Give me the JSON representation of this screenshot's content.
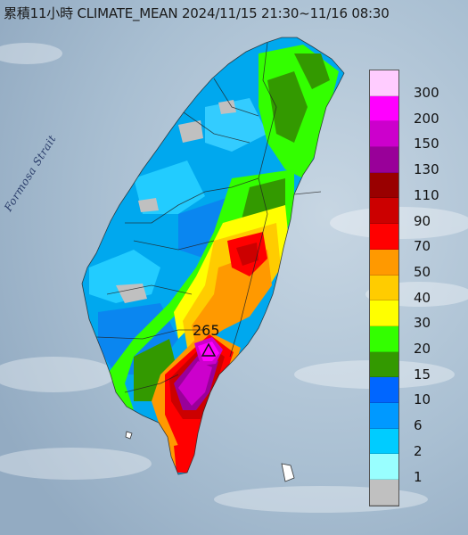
{
  "header": {
    "title": "累積11小時 CLIMATE_MEAN 2024/11/15 21:30~11/16 08:30"
  },
  "map": {
    "strait_label": "Formosa Strait",
    "peak": {
      "value": "265",
      "marker": "triangle-icon"
    },
    "colors": {
      "sea": "#9fb6c9",
      "sea_light": "#c7d6e3"
    }
  },
  "legend": {
    "items": [
      {
        "label": "300",
        "color": "#ffccff"
      },
      {
        "label": "200",
        "color": "#ff00ff"
      },
      {
        "label": "150",
        "color": "#cc00cc"
      },
      {
        "label": "130",
        "color": "#990099"
      },
      {
        "label": "110",
        "color": "#990000"
      },
      {
        "label": "90",
        "color": "#cc0000"
      },
      {
        "label": "70",
        "color": "#ff0000"
      },
      {
        "label": "50",
        "color": "#ff9900"
      },
      {
        "label": "40",
        "color": "#ffcc00"
      },
      {
        "label": "30",
        "color": "#ffff00"
      },
      {
        "label": "20",
        "color": "#33ff00"
      },
      {
        "label": "15",
        "color": "#339900"
      },
      {
        "label": "10",
        "color": "#0066ff"
      },
      {
        "label": "6",
        "color": "#0099ff"
      },
      {
        "label": "2",
        "color": "#00ccff"
      },
      {
        "label": "1",
        "color": "#99ffff"
      },
      {
        "label": "",
        "color": "#c0c0c0"
      }
    ]
  }
}
